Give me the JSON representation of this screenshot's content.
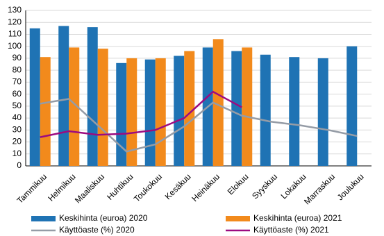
{
  "chart_data": {
    "type": "bar-line",
    "categories": [
      "Tammikuu",
      "Helmikuu",
      "Maaliskuu",
      "Huhtikuu",
      "Toukokuu",
      "Kesäkuu",
      "Heinäkuu",
      "Elokuu",
      "Syyskuu",
      "Lokakuu",
      "Marraskuu",
      "Joulukuu"
    ],
    "series": [
      {
        "name": "Keskihinta (euroa) 2020",
        "kind": "bar",
        "color": "#1f73b4",
        "values": [
          115,
          117,
          116,
          86,
          89,
          92,
          99,
          96,
          93,
          91,
          90,
          100
        ]
      },
      {
        "name": "Keskihinta (euroa) 2021",
        "kind": "bar",
        "color": "#f28a1c",
        "values": [
          91,
          99,
          98,
          90,
          90,
          96,
          106,
          99,
          null,
          null,
          null,
          null
        ]
      },
      {
        "name": "Käyttöaste (%) 2020",
        "kind": "line",
        "color": "#959ca6",
        "values": [
          52,
          56,
          34,
          12,
          18,
          33,
          53,
          42,
          37,
          34,
          30,
          25
        ]
      },
      {
        "name": "Käyttöaste (%) 2021",
        "kind": "line",
        "color": "#9c0b80",
        "values": [
          24,
          29,
          26,
          27,
          30,
          40,
          62,
          49,
          null,
          null,
          null,
          null
        ]
      }
    ],
    "ylim": [
      0,
      130
    ],
    "yticks": [
      0,
      10,
      20,
      30,
      40,
      50,
      60,
      70,
      80,
      90,
      100,
      110,
      120,
      130
    ],
    "grid": true
  }
}
